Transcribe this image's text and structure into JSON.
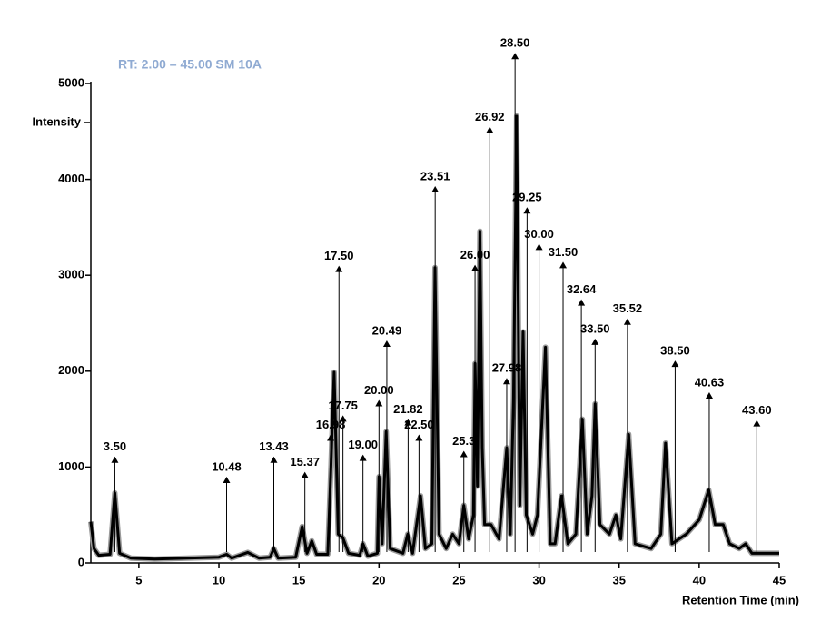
{
  "chart_data": {
    "type": "line",
    "title": "RT: 2.00 – 45.00 SM 10A",
    "y_label": "Intensity",
    "x_label": "Retention Time (min)",
    "x": [
      2.0,
      2.2,
      2.5,
      3.2,
      3.5,
      3.8,
      4.5,
      6,
      8,
      10,
      10.48,
      10.8,
      11.8,
      12.5,
      13.2,
      13.43,
      13.7,
      14.8,
      15.2,
      15.5,
      15.8,
      16.1,
      16.8,
      17.0,
      17.2,
      17.45,
      17.75,
      18.1,
      18.8,
      19.0,
      19.3,
      19.9,
      20.0,
      20.2,
      20.45,
      20.7,
      21.5,
      21.8,
      22.1,
      22.6,
      22.9,
      23.3,
      23.5,
      23.75,
      24.2,
      24.6,
      25.0,
      25.3,
      25.6,
      25.9,
      26.0,
      26.15,
      26.3,
      26.45,
      26.6,
      27.0,
      27.5,
      27.98,
      28.2,
      28.4,
      28.6,
      28.8,
      29.0,
      29.2,
      29.6,
      29.9,
      30.4,
      30.7,
      31.0,
      31.4,
      31.8,
      32.3,
      32.7,
      33.0,
      33.3,
      33.5,
      33.8,
      34.4,
      34.8,
      35.1,
      35.6,
      36.0,
      37.0,
      37.6,
      37.9,
      38.3,
      39.2,
      40.0,
      40.6,
      41.0,
      41.5,
      41.9,
      42.5,
      42.9,
      43.3,
      44,
      45
    ],
    "series": [
      {
        "color": "#000000",
        "values": [
          430,
          150,
          80,
          90,
          730,
          100,
          50,
          40,
          50,
          60,
          90,
          50,
          110,
          50,
          60,
          150,
          50,
          60,
          380,
          100,
          230,
          90,
          90,
          1000,
          1990,
          300,
          260,
          100,
          80,
          200,
          70,
          100,
          900,
          200,
          1370,
          150,
          100,
          300,
          100,
          700,
          150,
          200,
          3080,
          300,
          150,
          300,
          200,
          600,
          250,
          500,
          2080,
          800,
          3460,
          1200,
          400,
          400,
          250,
          1200,
          300,
          1700,
          4660,
          600,
          2410,
          500,
          300,
          500,
          2250,
          200,
          200,
          700,
          200,
          300,
          1500,
          300,
          700,
          1660,
          400,
          300,
          500,
          250,
          1340,
          200,
          150,
          300,
          1250,
          200,
          300,
          450,
          760,
          400,
          400,
          200,
          150,
          200,
          100,
          100,
          100
        ]
      }
    ],
    "xlim": [
      2,
      45
    ],
    "xticks": [
      5,
      10,
      15,
      20,
      25,
      30,
      35,
      40,
      45
    ],
    "ylim": [
      0,
      5000
    ],
    "yticks": [
      0,
      1000,
      2000,
      3000,
      4000,
      5000
    ],
    "peak_annotations": {
      "x": [
        3.5,
        10.48,
        13.43,
        15.37,
        16.98,
        17.5,
        17.75,
        19.0,
        20.0,
        20.49,
        21.82,
        22.5,
        23.51,
        25.3,
        26.0,
        26.92,
        27.98,
        28.5,
        29.25,
        30.0,
        31.5,
        32.64,
        33.5,
        35.52,
        38.5,
        40.63,
        43.6
      ],
      "labels": [
        "3.50",
        "10.48",
        "13.43",
        "15.37",
        "16.98",
        "17.50",
        "17.75",
        "19.00",
        "20.00",
        "20.49",
        "21.82",
        "22.50",
        "23.51",
        "25.3",
        "26.00",
        "26.92",
        "27.98",
        "28.50",
        "29.25",
        "30.00",
        "31.50",
        "32.64",
        "33.50",
        "35.52",
        "38.50",
        "40.63",
        "43.60"
      ],
      "heights": [
        1110,
        900,
        1110,
        950,
        1340,
        3100,
        1540,
        1130,
        1700,
        2320,
        1500,
        1340,
        3930,
        1170,
        3110,
        4550,
        1930,
        5320,
        3710,
        3330,
        3140,
        2750,
        2340,
        2550,
        2110,
        1780,
        1490
      ]
    }
  }
}
